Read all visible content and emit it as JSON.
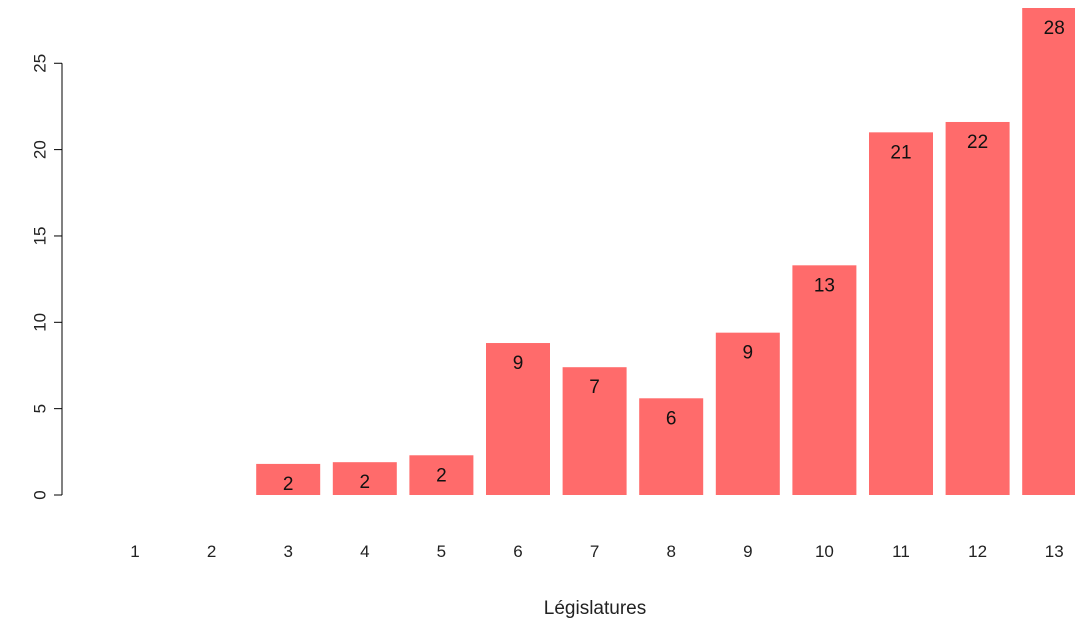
{
  "chart_data": {
    "type": "bar",
    "categories": [
      "1",
      "2",
      "3",
      "4",
      "5",
      "6",
      "7",
      "8",
      "9",
      "10",
      "11",
      "12",
      "13"
    ],
    "values": [
      0,
      0,
      1.8,
      1.9,
      2.3,
      8.8,
      7.4,
      5.6,
      9.4,
      13.3,
      21.0,
      21.6,
      28.2
    ],
    "data_labels": [
      "",
      "",
      "2",
      "2",
      "2",
      "9",
      "7",
      "6",
      "9",
      "13",
      "21",
      "22",
      "28"
    ],
    "title": "",
    "xlabel": "Législatures",
    "ylabel": "",
    "ylim": [
      0,
      28.2
    ],
    "yticks": [
      0,
      5,
      10,
      15,
      20,
      25
    ],
    "grid": false,
    "bar_color": "#ff6b6b"
  }
}
